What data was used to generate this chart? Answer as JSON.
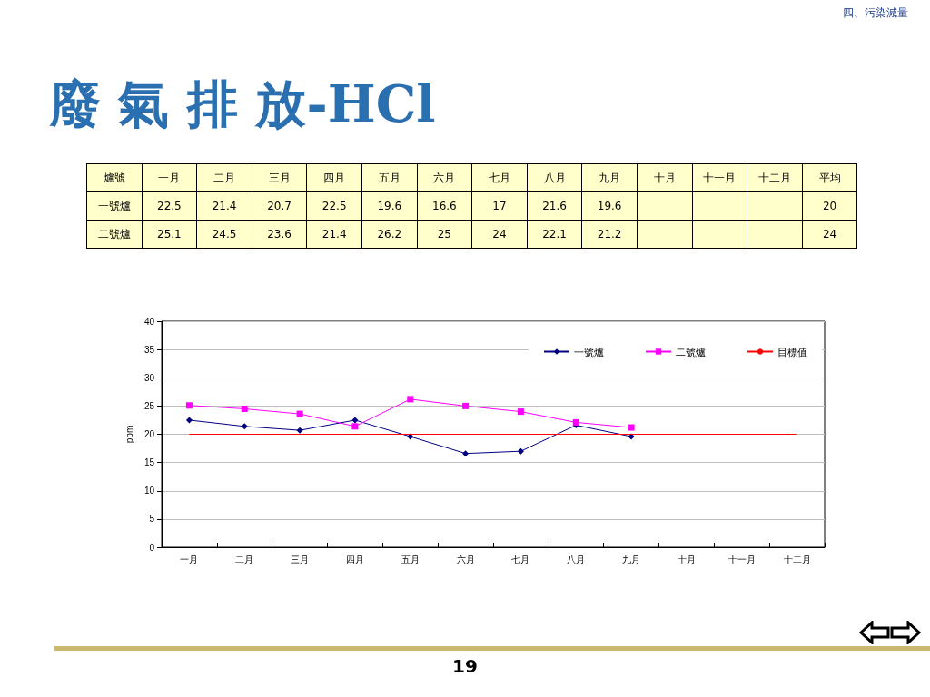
{
  "chart_data": {
    "type": "line",
    "title": "廢 氣 排 放-HCl",
    "subtitle": "四、污染減量",
    "ylabel": "ppm",
    "categories": [
      "一月",
      "二月",
      "三月",
      "四月",
      "五月",
      "六月",
      "七月",
      "八月",
      "九月",
      "十月",
      "十一月",
      "十二月"
    ],
    "series": [
      {
        "name": "一號爐",
        "color": "#000080",
        "marker": "diamond",
        "values": [
          22.5,
          21.4,
          20.7,
          22.5,
          19.6,
          16.6,
          17,
          21.6,
          19.6,
          null,
          null,
          null
        ]
      },
      {
        "name": "二號爐",
        "color": "#ff00ff",
        "marker": "square",
        "values": [
          25.1,
          24.5,
          23.6,
          21.4,
          26.2,
          25,
          24,
          22.1,
          21.2,
          null,
          null,
          null
        ]
      }
    ],
    "ref_lines": [
      {
        "axis": "y",
        "value": 20,
        "label": "目標值",
        "color": "#ff0000",
        "line_style": "solid"
      }
    ],
    "ylim": [
      0,
      40
    ],
    "yticks": [
      0,
      5,
      10,
      15,
      20,
      25,
      30,
      35,
      40
    ],
    "grid": "y",
    "legend": "top right",
    "data_labels": true,
    "annotations": [
      "爐號",
      "平均",
      "20",
      "24",
      "19"
    ]
  }
}
